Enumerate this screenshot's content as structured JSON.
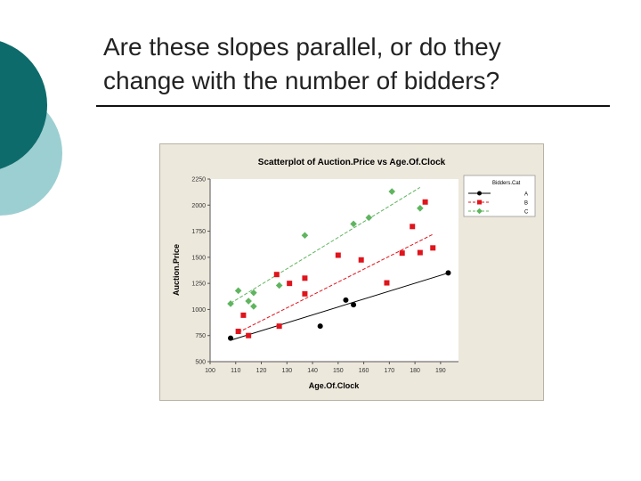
{
  "slide": {
    "title_line1": "Are these slopes parallel, or do they",
    "title_line2": "change with the number of bidders?"
  },
  "colors": {
    "teal_dark": "#0e6b6b",
    "teal_light": "#9ccfd2",
    "chart_bg": "#ede8dc",
    "series_A": "#000000",
    "series_B": "#e0141c",
    "series_C": "#5fb55f"
  },
  "chart_data": {
    "type": "scatter",
    "title": "Scatterplot of Auction.Price vs Age.Of.Clock",
    "xlabel": "Age.Of.Clock",
    "ylabel": "Auction.Price",
    "xlim": [
      100,
      197
    ],
    "ylim": [
      500,
      2250
    ],
    "xticks": [
      100,
      110,
      120,
      130,
      140,
      150,
      160,
      170,
      180,
      190
    ],
    "yticks": [
      500,
      750,
      1000,
      1250,
      1500,
      1750,
      2000,
      2250
    ],
    "grid": false,
    "legend": {
      "title": "Bidders.Cat",
      "placement": "right"
    },
    "series": [
      {
        "name": "A",
        "marker": "circle",
        "color": "#000000",
        "line": "solid",
        "points": [
          [
            108,
            725
          ],
          [
            143,
            840
          ],
          [
            153,
            1090
          ],
          [
            156,
            1045
          ],
          [
            193,
            1350
          ]
        ],
        "fit": [
          [
            108,
            705
          ],
          [
            193,
            1350
          ]
        ]
      },
      {
        "name": "B",
        "marker": "square",
        "color": "#e0141c",
        "line": "dashed",
        "points": [
          [
            111,
            790
          ],
          [
            113,
            945
          ],
          [
            115,
            750
          ],
          [
            126,
            1335
          ],
          [
            127,
            840
          ],
          [
            131,
            1250
          ],
          [
            137,
            1300
          ],
          [
            137,
            1150
          ],
          [
            150,
            1520
          ],
          [
            159,
            1475
          ],
          [
            169,
            1255
          ],
          [
            175,
            1540
          ],
          [
            179,
            1795
          ],
          [
            182,
            1545
          ],
          [
            184,
            2030
          ],
          [
            187,
            1590
          ]
        ],
        "fit": [
          [
            111,
            780
          ],
          [
            187,
            1720
          ]
        ]
      },
      {
        "name": "C",
        "marker": "diamond",
        "color": "#5fb55f",
        "line": "dashed",
        "points": [
          [
            108,
            1055
          ],
          [
            111,
            1180
          ],
          [
            115,
            1080
          ],
          [
            117,
            1030
          ],
          [
            117,
            1160
          ],
          [
            127,
            1230
          ],
          [
            137,
            1710
          ],
          [
            156,
            1820
          ],
          [
            162,
            1880
          ],
          [
            171,
            2130
          ],
          [
            182,
            1970
          ]
        ],
        "fit": [
          [
            108,
            1060
          ],
          [
            182,
            2170
          ]
        ]
      }
    ]
  }
}
